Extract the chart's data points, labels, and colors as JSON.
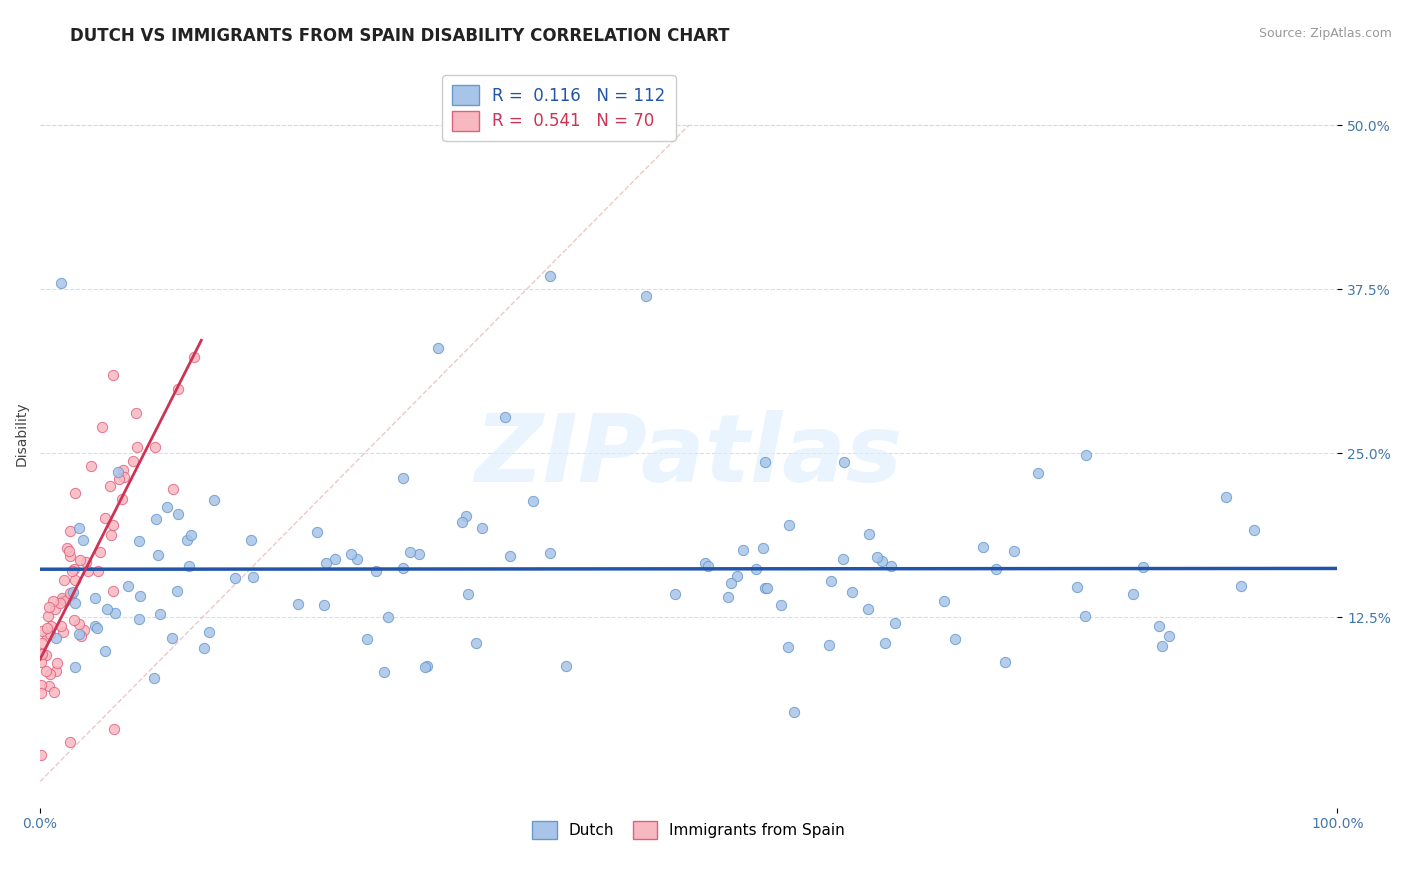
{
  "title": "DUTCH VS IMMIGRANTS FROM SPAIN DISABILITY CORRELATION CHART",
  "source": "Source: ZipAtlas.com",
  "ylabel": "Disability",
  "xlim": [
    0.0,
    1.0
  ],
  "ylim": [
    -0.02,
    0.55
  ],
  "x_ticks": [
    0.0,
    1.0
  ],
  "x_tick_labels": [
    "0.0%",
    "100.0%"
  ],
  "y_ticks": [
    0.125,
    0.25,
    0.375,
    0.5
  ],
  "y_tick_labels": [
    "12.5%",
    "25.0%",
    "37.5%",
    "50.0%"
  ],
  "dutch_color": "#A8C4E8",
  "dutch_edge_color": "#6699CC",
  "spain_color": "#F8B8C0",
  "spain_edge_color": "#E06080",
  "dutch_line_color": "#2255AA",
  "spain_line_color": "#CC3355",
  "diag_line_color": "#E8BBBB",
  "dutch_R": 0.116,
  "dutch_N": 112,
  "spain_R": 0.541,
  "spain_N": 70,
  "background_color": "#FFFFFF",
  "grid_color": "#CCDDEE",
  "watermark": "ZIPatlas",
  "watermark_color": "#DDEEFF",
  "title_fontsize": 12,
  "axis_label_fontsize": 10,
  "tick_fontsize": 10,
  "legend_fontsize": 12,
  "source_fontsize": 9
}
